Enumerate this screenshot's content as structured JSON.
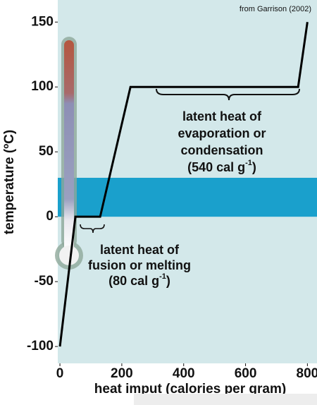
{
  "chart_data": {
    "type": "line",
    "source": "from Garrison (2002)",
    "x_label": "heat imput (calories per gram)",
    "y_label": "temperature (ºC)",
    "x": [
      0,
      50,
      130,
      228,
      770,
      800
    ],
    "series": [
      {
        "color": "#000000",
        "values": [
          -100,
          0,
          0,
          100,
          100,
          150
        ]
      }
    ],
    "band": {
      "from": 0,
      "to": 30,
      "color": "#1aa0cc"
    },
    "xlim": [
      -7,
      831
    ],
    "xticks": [
      0,
      200,
      400,
      600,
      800
    ],
    "ylim": [
      -113,
      167
    ],
    "yticks": [
      -100,
      -50,
      0,
      50,
      100,
      150
    ],
    "annotations": [
      {
        "lines": [
          "latent heat of",
          "evaporation or",
          "condensation"
        ],
        "value_line": [
          "(540 cal g",
          "-1",
          ")"
        ]
      },
      {
        "lines": [
          "latent heat of",
          "fusion or melting"
        ],
        "value_line": [
          "(80 cal g",
          "-1",
          ")"
        ]
      }
    ]
  }
}
